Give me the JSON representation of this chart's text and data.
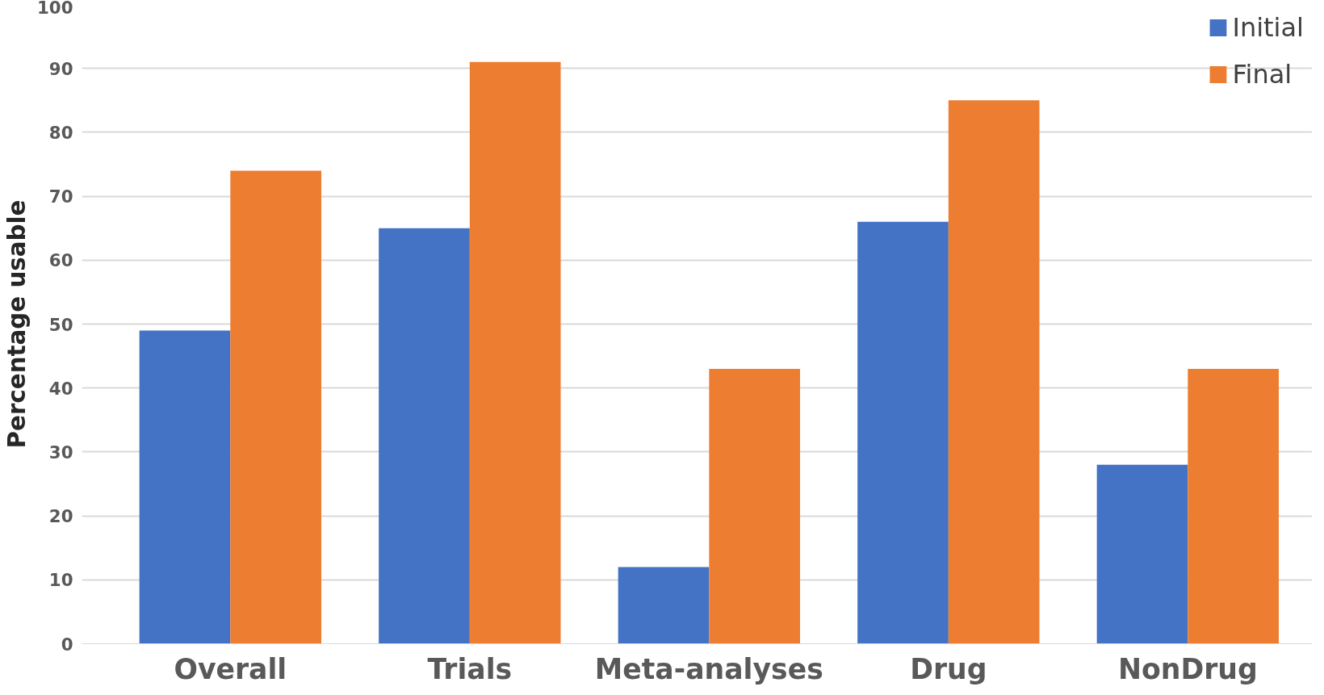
{
  "chart_data": {
    "type": "bar",
    "ylabel": "Percentage usable",
    "categories": [
      "Overall",
      "Trials",
      "Meta-analyses",
      "Drug",
      "NonDrug"
    ],
    "series": [
      {
        "name": "Initial",
        "color": "#4472c4",
        "values": [
          49,
          65,
          12,
          66,
          28
        ]
      },
      {
        "name": "Final",
        "color": "#ed7d31",
        "values": [
          74,
          91,
          43,
          85,
          43
        ]
      }
    ],
    "ylim": [
      0,
      100
    ],
    "yticks": [
      0,
      10,
      20,
      30,
      40,
      50,
      60,
      70,
      80,
      90,
      100
    ],
    "grid": "y",
    "legend": "top right"
  }
}
